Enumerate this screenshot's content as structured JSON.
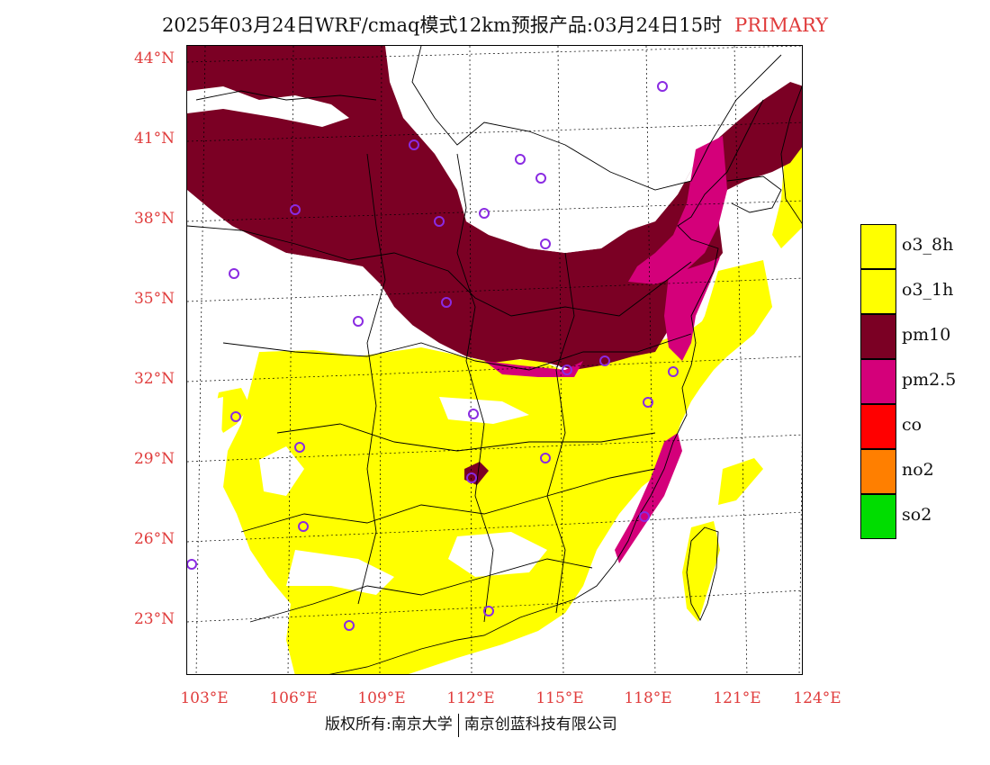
{
  "title": {
    "main": "2025年03月24日WRF/cmaq模式12km预报产品:03月24日15时",
    "tag": "PRIMARY"
  },
  "axes": {
    "lat_labels": [
      "44°N",
      "41°N",
      "38°N",
      "35°N",
      "32°N",
      "29°N",
      "26°N",
      "23°N"
    ],
    "lon_labels": [
      "103°E",
      "106°E",
      "109°E",
      "112°E",
      "115°E",
      "118°E",
      "121°E",
      "124°E"
    ]
  },
  "legend": [
    {
      "label": "o3_8h",
      "color": "#ffff00"
    },
    {
      "label": "o3_1h",
      "color": "#ffff00"
    },
    {
      "label": "pm10",
      "color": "#7b0024"
    },
    {
      "label": "pm2.5",
      "color": "#d4007a"
    },
    {
      "label": "co",
      "color": "#ff0000"
    },
    {
      "label": "no2",
      "color": "#ff7f00"
    },
    {
      "label": "so2",
      "color": "#00dd00"
    }
  ],
  "colors": {
    "o3": "#ffff00",
    "pm10": "#7b0024",
    "pm25": "#d4007a",
    "city_marker": "#8a2be2",
    "label_red": "#e03c3c"
  },
  "footer": {
    "left": "版权所有:南京大学",
    "right": "南京创蓝科技有限公司"
  }
}
